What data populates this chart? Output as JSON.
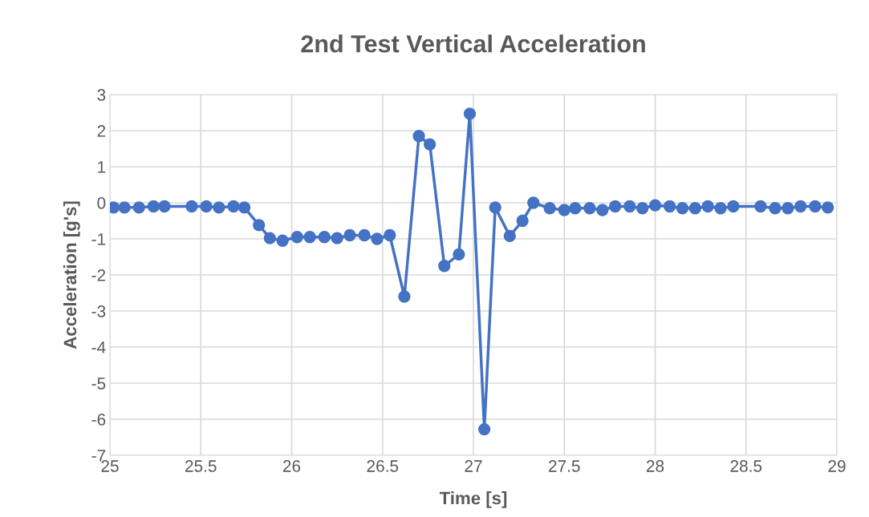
{
  "chart_data": {
    "type": "line",
    "title": "2nd Test Vertical Acceleration",
    "xlabel": "Time [s]",
    "ylabel": "Acceleration [g's]",
    "x": [
      25.02,
      25.08,
      25.16,
      25.24,
      25.3,
      25.45,
      25.53,
      25.6,
      25.68,
      25.74,
      25.82,
      25.88,
      25.95,
      26.03,
      26.1,
      26.18,
      26.25,
      26.32,
      26.4,
      26.47,
      26.54,
      26.62,
      26.7,
      26.76,
      26.84,
      26.92,
      26.98,
      27.06,
      27.12,
      27.2,
      27.27,
      27.33,
      27.42,
      27.5,
      27.56,
      27.64,
      27.71,
      27.78,
      27.86,
      27.93,
      28.0,
      28.08,
      28.15,
      28.22,
      28.29,
      28.36,
      28.43,
      28.58,
      28.66,
      28.73,
      28.8,
      28.88,
      28.95
    ],
    "series": [
      {
        "color": "#4472c4",
        "values": [
          -0.13,
          -0.13,
          -0.13,
          -0.1,
          -0.1,
          -0.1,
          -0.1,
          -0.13,
          -0.1,
          -0.13,
          -0.62,
          -0.98,
          -1.05,
          -0.95,
          -0.95,
          -0.95,
          -0.98,
          -0.9,
          -0.9,
          -1.0,
          -0.9,
          -2.6,
          1.85,
          1.62,
          -1.75,
          -1.43,
          2.47,
          -6.28,
          -0.13,
          -0.92,
          -0.5,
          0.0,
          -0.15,
          -0.2,
          -0.15,
          -0.15,
          -0.2,
          -0.1,
          -0.1,
          -0.15,
          -0.07,
          -0.1,
          -0.15,
          -0.15,
          -0.1,
          -0.15,
          -0.1,
          -0.1,
          -0.15,
          -0.15,
          -0.1,
          -0.1,
          -0.13
        ]
      }
    ],
    "xlim": [
      25,
      29
    ],
    "xticks": [
      25,
      25.5,
      26,
      26.5,
      27,
      27.5,
      28,
      28.5,
      29
    ],
    "ylim": [
      -7,
      3
    ],
    "yticks": [
      -7,
      -6,
      -5,
      -4,
      -3,
      -2,
      -1,
      0,
      1,
      2,
      3
    ],
    "grid": true,
    "marker": "circle",
    "line_style": "solid",
    "legend": false
  }
}
